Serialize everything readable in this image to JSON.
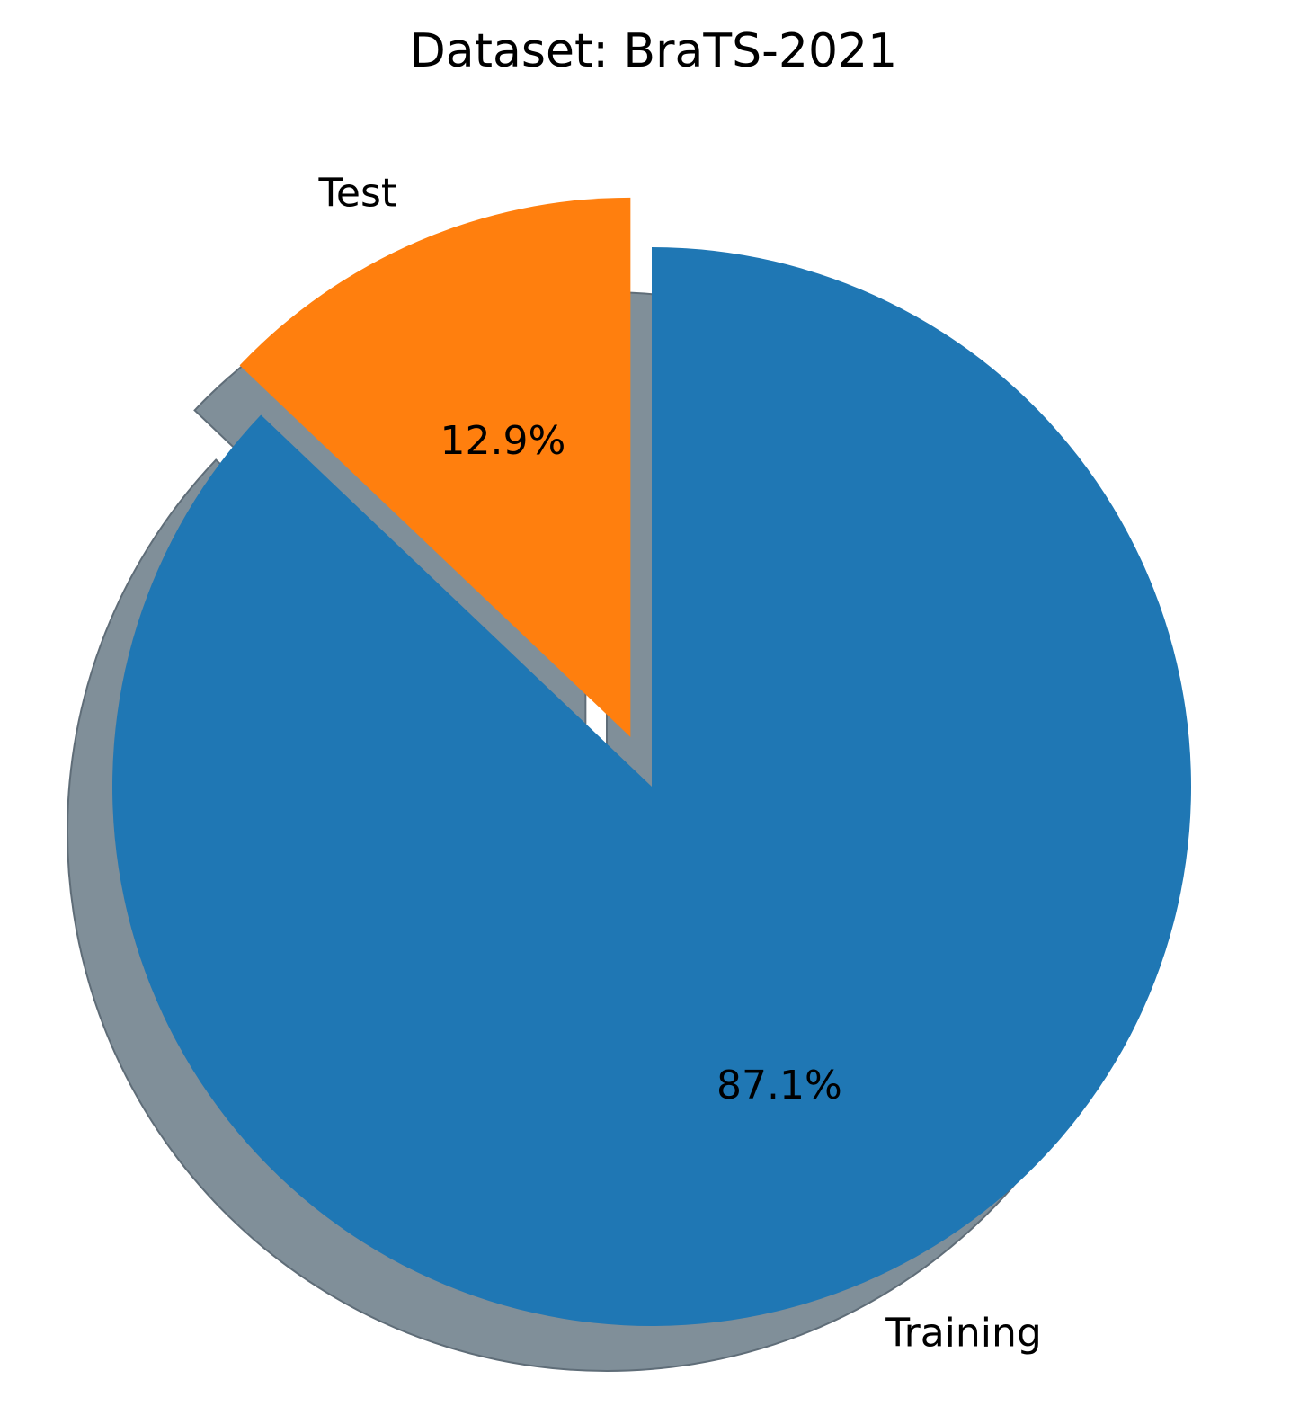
{
  "chart_data": {
    "type": "pie",
    "title": "Dataset: BraTS-2021",
    "categories": [
      "Training",
      "Test"
    ],
    "values": [
      87.1,
      12.9
    ],
    "percent_labels": [
      "87.1%",
      "12.9%"
    ],
    "colors": [
      "#1f77b4",
      "#ff7f0e"
    ],
    "shadow_color": "#808f99",
    "explode": [
      0,
      0.1
    ],
    "start_angle_deg": 90,
    "shadow": true
  }
}
